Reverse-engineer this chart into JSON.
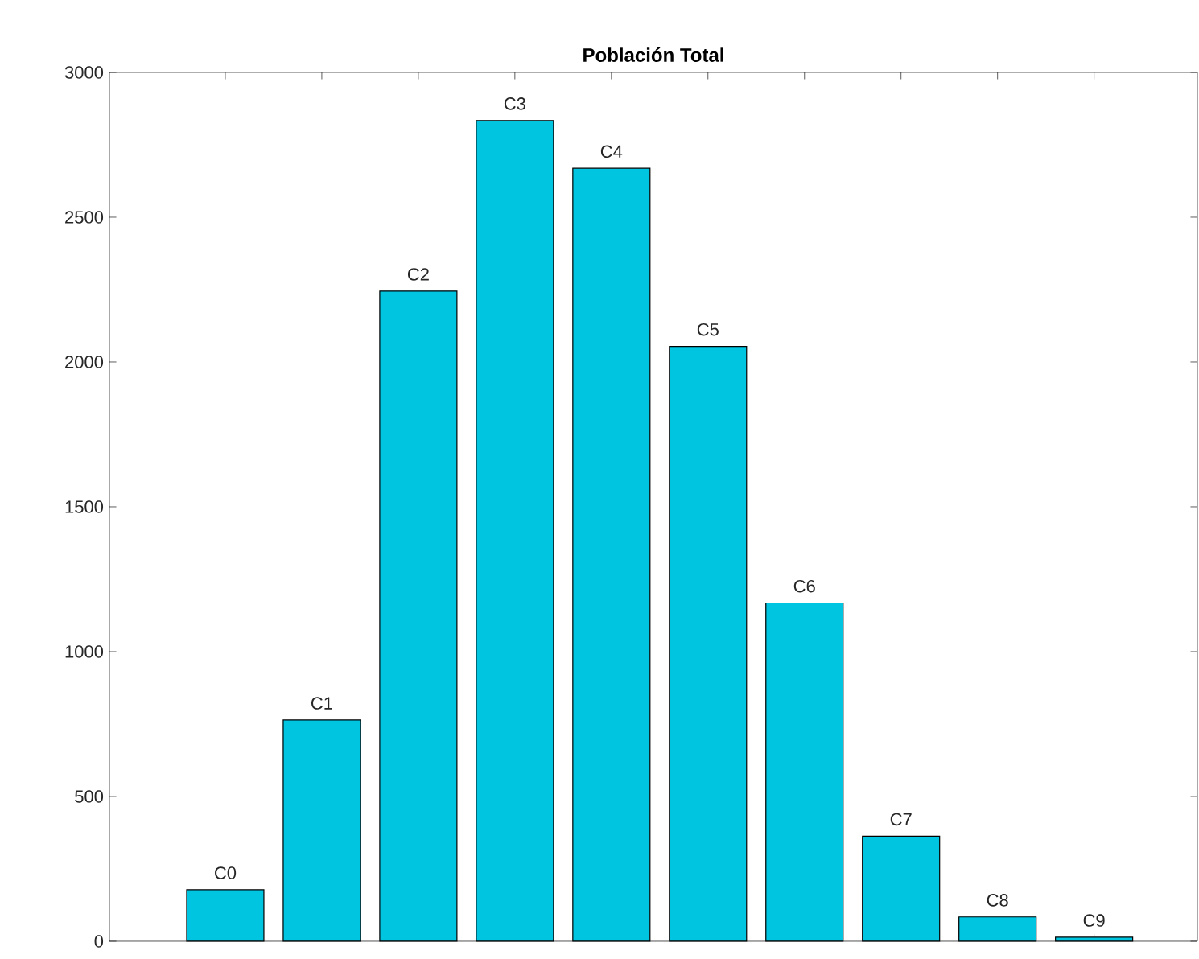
{
  "chart_data": {
    "type": "bar",
    "title": "Población Total",
    "categories": [
      "C0",
      "C1",
      "C2",
      "C3",
      "C4",
      "C5",
      "C6",
      "C7",
      "C8",
      "C9"
    ],
    "values": [
      178,
      764,
      2245,
      2834,
      2669,
      2054,
      1168,
      363,
      84,
      14
    ],
    "color": "#00c5e0",
    "ylim": [
      0,
      3000
    ],
    "yticks": [
      0,
      500,
      1000,
      1500,
      2000,
      2500,
      3000
    ],
    "tick_labels": "y"
  }
}
